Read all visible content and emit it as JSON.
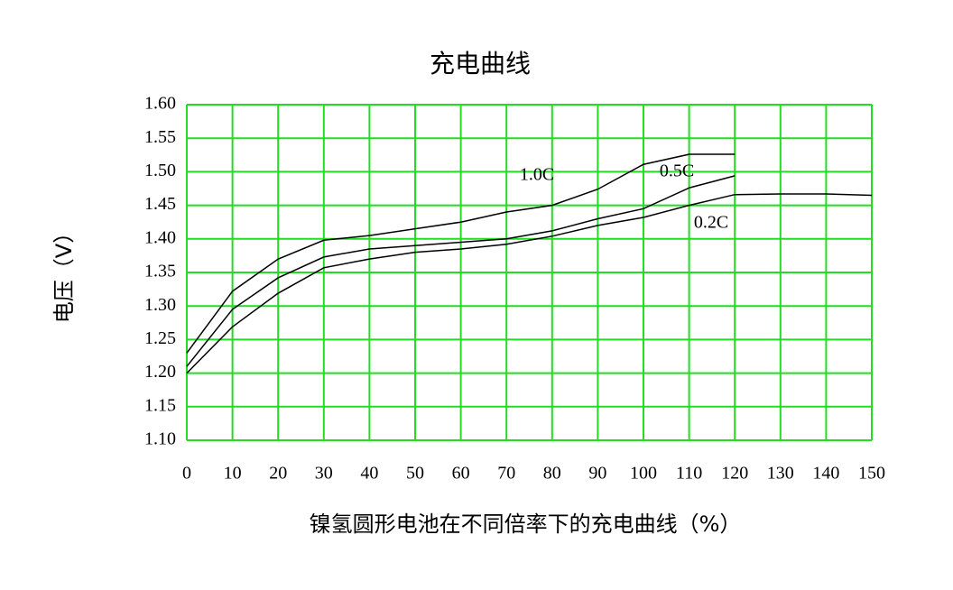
{
  "chart_data": {
    "type": "line",
    "title": "充电曲线",
    "y_label": "电压（V）",
    "x_label": "镍氢圆形电池在不同倍率下的充电曲线（%）",
    "x": [
      0,
      10,
      20,
      30,
      40,
      50,
      60,
      70,
      80,
      90,
      100,
      110,
      120,
      130,
      140,
      150
    ],
    "series": [
      {
        "name": "1.0C",
        "color": "#000000",
        "values": [
          1.23,
          1.322,
          1.37,
          1.398,
          1.405,
          1.415,
          1.425,
          1.44,
          1.45,
          1.474,
          1.511,
          1.526,
          1.526,
          null,
          null,
          null
        ]
      },
      {
        "name": "0.5C",
        "color": "#000000",
        "values": [
          1.21,
          1.295,
          1.342,
          1.373,
          1.385,
          1.39,
          1.395,
          1.4,
          1.412,
          1.43,
          1.445,
          1.476,
          1.494,
          null,
          null,
          null
        ]
      },
      {
        "name": "0.2C",
        "color": "#000000",
        "values": [
          1.2,
          1.269,
          1.319,
          1.357,
          1.37,
          1.38,
          1.385,
          1.392,
          1.404,
          1.42,
          1.432,
          1.45,
          1.466,
          1.467,
          1.467,
          1.465
        ]
      }
    ],
    "xlim": [
      0,
      150
    ],
    "xticks": [
      0,
      10,
      20,
      30,
      40,
      50,
      60,
      70,
      80,
      90,
      100,
      110,
      120,
      130,
      140,
      150
    ],
    "ylim": [
      1.1,
      1.6
    ],
    "yticks": [
      {
        "value": 1.1,
        "label": "1.10"
      },
      1.15,
      {
        "value": 1.2,
        "label": "1.20"
      },
      1.25,
      {
        "value": 1.3,
        "label": "1.30"
      },
      1.35,
      {
        "value": 1.4,
        "label": "1.40"
      },
      1.45,
      {
        "value": 1.5,
        "label": "1.50"
      },
      1.55,
      {
        "value": 1.6,
        "label": "1.60"
      }
    ],
    "grid": true,
    "grid_color": "#22dd22"
  }
}
